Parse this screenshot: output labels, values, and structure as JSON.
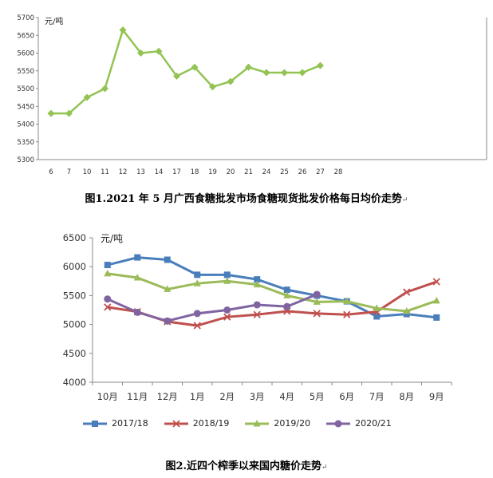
{
  "chart_data": [
    {
      "type": "line",
      "unit_label": "元/吨",
      "title": "图1.2021 年 5 月广西食糖批发市场食糖现货批发价格每日均价走势",
      "categories": [
        "6",
        "7",
        "10",
        "11",
        "12",
        "13",
        "14",
        "17",
        "18",
        "19",
        "20",
        "21",
        "24",
        "25",
        "26",
        "27",
        "28"
      ],
      "values": [
        5430,
        5430,
        5475,
        5500,
        5665,
        5600,
        5605,
        5535,
        5560,
        5505,
        5520,
        5560,
        5545,
        5545,
        5545,
        5565,
        null
      ],
      "ylim": [
        5300,
        5700
      ],
      "yticks": [
        5300,
        5350,
        5400,
        5450,
        5500,
        5550,
        5600,
        5650,
        5700
      ],
      "grid": false,
      "color": "#92c353"
    },
    {
      "type": "line",
      "unit_label": "元/吨",
      "title": "图2.近四个榨季以来国内糖价走势",
      "categories": [
        "10月",
        "11月",
        "12月",
        "1月",
        "2月",
        "3月",
        "4月",
        "5月",
        "6月",
        "7月",
        "8月",
        "9月"
      ],
      "ylim": [
        4000,
        6500
      ],
      "yticks": [
        4000,
        4500,
        5000,
        5500,
        6000,
        6500
      ],
      "grid": false,
      "legend": "bottom",
      "series": [
        {
          "name": "2017/18",
          "color": "#4a7ebb",
          "marker": "square",
          "values": [
            6030,
            6160,
            6120,
            5860,
            5860,
            5780,
            5600,
            5500,
            5400,
            5140,
            5180,
            5120
          ]
        },
        {
          "name": "2018/19",
          "color": "#c0504d",
          "marker": "x",
          "values": [
            5300,
            5220,
            5050,
            4980,
            5130,
            5170,
            5230,
            5190,
            5170,
            5220,
            5560,
            5740
          ]
        },
        {
          "name": "2019/20",
          "color": "#9bbb59",
          "marker": "triangle",
          "values": [
            5880,
            5810,
            5610,
            5710,
            5750,
            5690,
            5500,
            5390,
            5400,
            5280,
            5230,
            5410
          ]
        },
        {
          "name": "2020/21",
          "color": "#8064a2",
          "marker": "circle",
          "values": [
            5440,
            5210,
            5060,
            5190,
            5250,
            5340,
            5310,
            5520,
            null,
            null,
            null,
            null
          ]
        }
      ]
    }
  ],
  "captions": {
    "fig1": "图1.2021 年 5 月广西食糖批发市场食糖现货批发价格每日均价走势",
    "fig2": "图2.近四个榨季以来国内糖价走势",
    "mark": "↵"
  }
}
